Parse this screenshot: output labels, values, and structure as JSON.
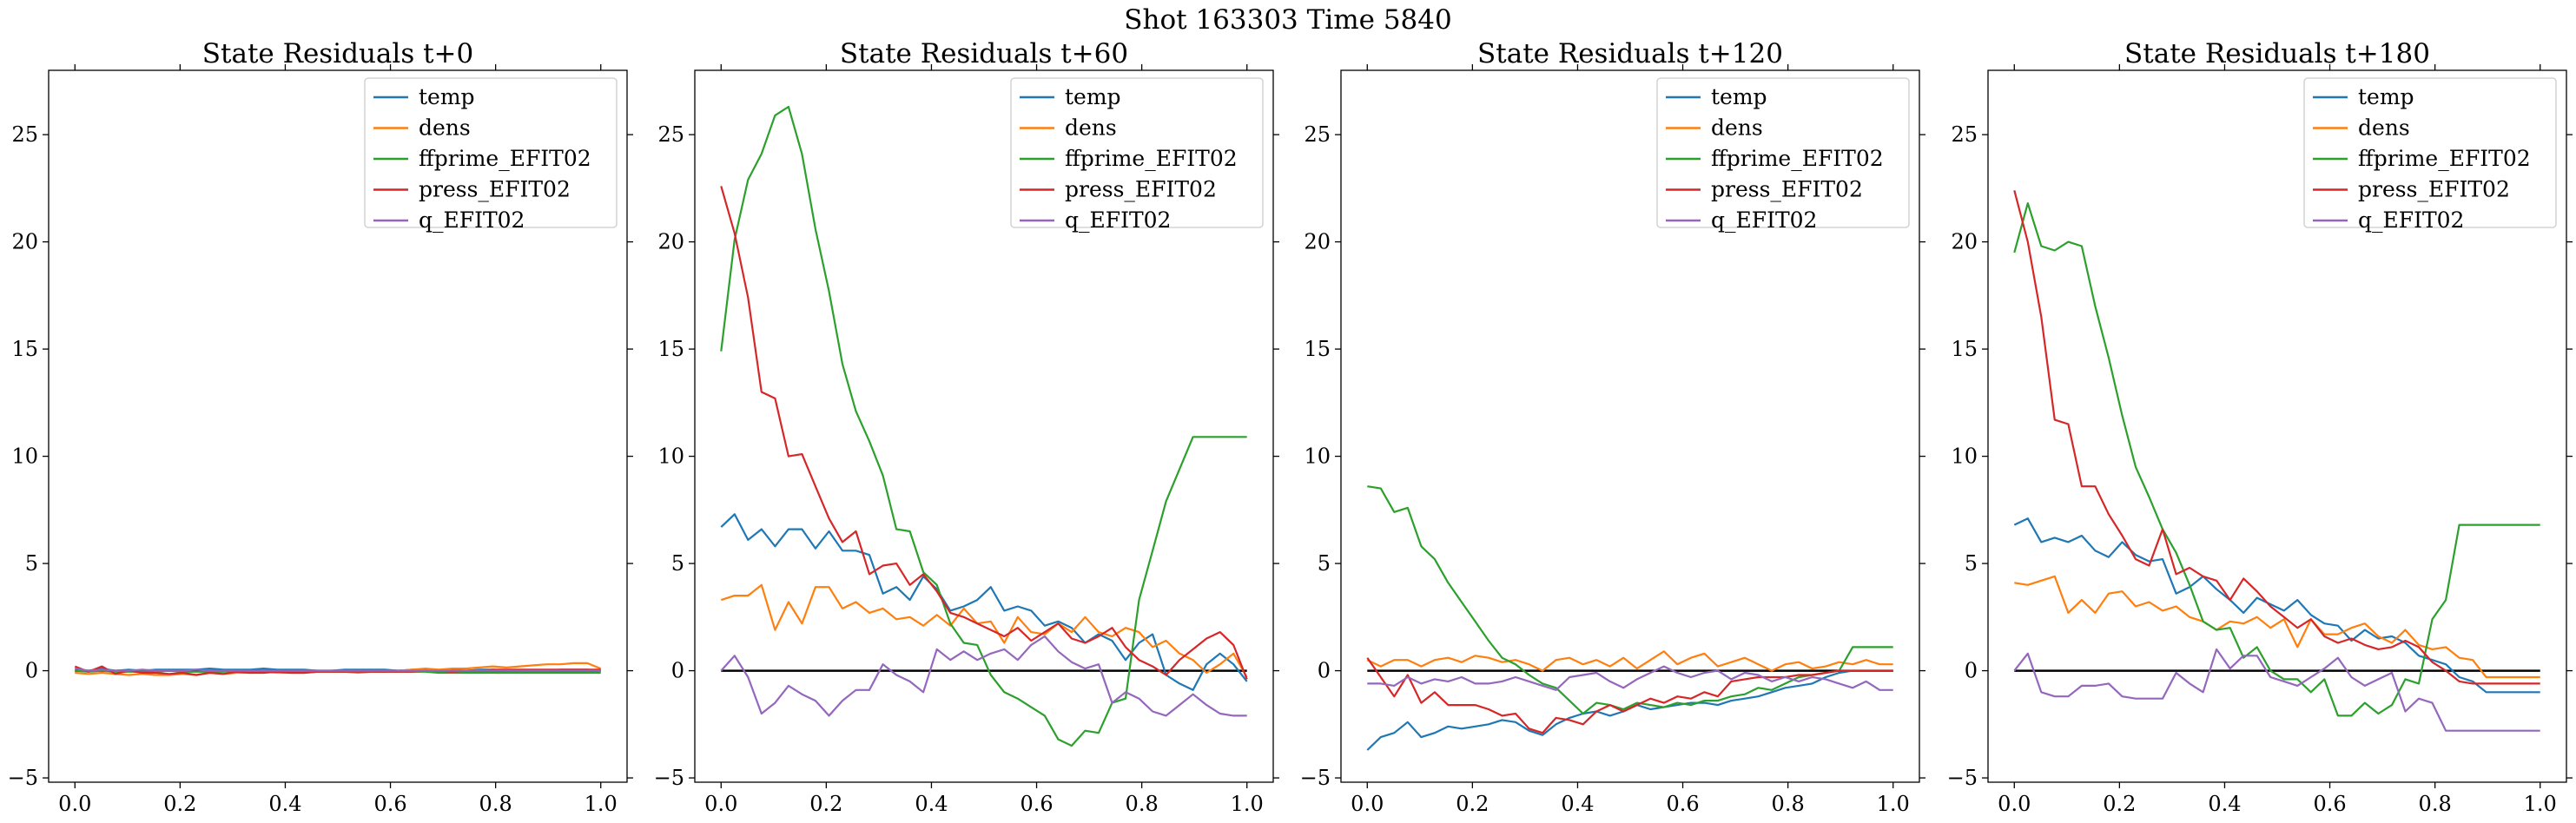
{
  "figure": {
    "suptitle": "Shot 163303   Time 5840",
    "colors": {
      "temp": "#1f77b4",
      "dens": "#ff7f0e",
      "ffprime_EFIT02": "#2ca02c",
      "press_EFIT02": "#d62728",
      "q_EFIT02": "#9467bd"
    }
  },
  "chart_data": [
    {
      "type": "line",
      "title": "State Residuals t+0",
      "xlim": [
        -0.05,
        1.05
      ],
      "ylim": [
        -5.2,
        28
      ],
      "xticks": [
        0.0,
        0.2,
        0.4,
        0.6,
        0.8,
        1.0
      ],
      "xtick_labels": [
        "0.0",
        "0.2",
        "0.4",
        "0.6",
        "0.8",
        "1.0"
      ],
      "yticks": [
        -5,
        0,
        5,
        10,
        15,
        20,
        25
      ],
      "ytick_labels": [
        "−5",
        "0",
        "5",
        "10",
        "15",
        "20",
        "25"
      ],
      "zero_line": true,
      "legend_position": "top-right",
      "series": [
        {
          "name": "temp",
          "color": "#1f77b4",
          "values": [
            0.1,
            0.0,
            0.1,
            0.0,
            0.05,
            0.0,
            0.05,
            0.05,
            0.05,
            0.05,
            0.1,
            0.05,
            0.05,
            0.05,
            0.1,
            0.05,
            0.05,
            0.05,
            0.0,
            0.0,
            0.05,
            0.05,
            0.05,
            0.05,
            0.0,
            0.05,
            0.05,
            0.0,
            0.05,
            0.0,
            0.05,
            0.05,
            0.0,
            0.0,
            0.0,
            0.0,
            0.05,
            0.05,
            0.05,
            0.0
          ]
        },
        {
          "name": "dens",
          "color": "#ff7f0e",
          "values": [
            -0.1,
            -0.15,
            -0.1,
            -0.15,
            -0.2,
            -0.15,
            -0.2,
            -0.2,
            -0.15,
            -0.2,
            -0.1,
            -0.15,
            -0.1,
            -0.1,
            -0.05,
            -0.1,
            -0.1,
            -0.1,
            -0.05,
            -0.05,
            -0.05,
            -0.1,
            -0.05,
            -0.05,
            0.0,
            0.05,
            0.1,
            0.05,
            0.1,
            0.1,
            0.15,
            0.2,
            0.15,
            0.2,
            0.25,
            0.3,
            0.3,
            0.35,
            0.35,
            0.1
          ]
        },
        {
          "name": "ffprime_EFIT02",
          "color": "#2ca02c",
          "values": [
            0.0,
            -0.05,
            0.0,
            -0.05,
            -0.05,
            -0.05,
            -0.05,
            0.0,
            -0.05,
            -0.05,
            -0.05,
            -0.05,
            0.0,
            -0.05,
            -0.05,
            -0.05,
            -0.05,
            -0.05,
            -0.05,
            -0.05,
            -0.05,
            -0.05,
            -0.05,
            -0.05,
            -0.05,
            -0.05,
            -0.05,
            -0.1,
            -0.1,
            -0.1,
            -0.1,
            -0.1,
            -0.1,
            -0.1,
            -0.1,
            -0.1,
            -0.1,
            -0.1,
            -0.1,
            -0.1
          ]
        },
        {
          "name": "press_EFIT02",
          "color": "#d62728",
          "values": [
            0.2,
            -0.05,
            0.2,
            -0.15,
            0.0,
            -0.1,
            -0.1,
            -0.15,
            -0.1,
            -0.2,
            -0.1,
            -0.15,
            -0.05,
            -0.1,
            -0.1,
            -0.05,
            -0.1,
            -0.1,
            -0.05,
            -0.05,
            -0.05,
            -0.05,
            -0.05,
            -0.05,
            -0.05,
            -0.05,
            0.0,
            0.0,
            -0.05,
            0.0,
            0.0,
            0.05,
            0.05,
            0.05,
            0.05,
            0.05,
            0.05,
            0.05,
            0.05,
            0.05
          ]
        },
        {
          "name": "q_EFIT02",
          "color": "#9467bd",
          "values": [
            0.1,
            0.0,
            0.05,
            0.0,
            0.0,
            0.05,
            0.0,
            0.0,
            0.0,
            0.05,
            0.0,
            0.0,
            0.0,
            0.0,
            0.0,
            0.0,
            0.0,
            0.0,
            0.0,
            0.0,
            0.0,
            0.0,
            0.0,
            0.0,
            0.0,
            0.0,
            0.0,
            0.0,
            0.0,
            0.0,
            0.0,
            0.0,
            0.0,
            0.0,
            0.0,
            0.0,
            0.0,
            0.0,
            0.0,
            0.0
          ]
        }
      ]
    },
    {
      "type": "line",
      "title": "State Residuals t+60",
      "xlim": [
        -0.05,
        1.05
      ],
      "ylim": [
        -5.2,
        28
      ],
      "xticks": [
        0.0,
        0.2,
        0.4,
        0.6,
        0.8,
        1.0
      ],
      "xtick_labels": [
        "0.0",
        "0.2",
        "0.4",
        "0.6",
        "0.8",
        "1.0"
      ],
      "yticks": [
        -5,
        0,
        5,
        10,
        15,
        20,
        25
      ],
      "ytick_labels": [
        "−5",
        "0",
        "5",
        "10",
        "15",
        "20",
        "25"
      ],
      "zero_line": true,
      "legend_position": "top-right",
      "series": [
        {
          "name": "temp",
          "color": "#1f77b4",
          "values": [
            6.7,
            7.3,
            6.1,
            6.6,
            5.8,
            6.6,
            6.6,
            5.7,
            6.5,
            5.6,
            5.6,
            5.4,
            3.6,
            3.9,
            3.3,
            4.4,
            3.8,
            2.8,
            3.0,
            3.3,
            3.9,
            2.8,
            3.0,
            2.8,
            2.1,
            2.3,
            2.0,
            1.3,
            1.7,
            1.4,
            0.5,
            1.3,
            1.7,
            -0.2,
            -0.6,
            -0.9,
            0.3,
            0.8,
            0.3,
            -0.5
          ]
        },
        {
          "name": "dens",
          "color": "#ff7f0e",
          "values": [
            3.3,
            3.5,
            3.5,
            4.0,
            1.9,
            3.2,
            2.2,
            3.9,
            3.9,
            2.9,
            3.2,
            2.7,
            2.9,
            2.4,
            2.5,
            2.1,
            2.6,
            2.1,
            2.9,
            2.2,
            2.3,
            1.3,
            2.5,
            1.8,
            1.7,
            2.2,
            1.8,
            2.5,
            1.8,
            1.6,
            2.0,
            1.8,
            1.1,
            1.4,
            0.8,
            0.5,
            -0.1,
            0.3,
            0.8,
            -0.3
          ]
        },
        {
          "name": "ffprime_EFIT02",
          "color": "#2ca02c",
          "values": [
            14.9,
            20.1,
            22.9,
            24.1,
            25.9,
            26.3,
            24.1,
            20.6,
            17.7,
            14.3,
            12.1,
            10.7,
            9.1,
            6.6,
            6.5,
            4.6,
            4.0,
            2.2,
            1.3,
            1.2,
            -0.2,
            -1.0,
            -1.3,
            -1.7,
            -2.1,
            -3.2,
            -3.5,
            -2.8,
            -2.9,
            -1.5,
            -1.3,
            3.3,
            5.6,
            7.9,
            9.4,
            10.9,
            10.9,
            10.9,
            10.9,
            10.9
          ]
        },
        {
          "name": "press_EFIT02",
          "color": "#d62728",
          "values": [
            22.6,
            20.4,
            17.4,
            13.0,
            12.7,
            10.0,
            10.1,
            8.6,
            7.1,
            6.0,
            6.5,
            4.5,
            4.9,
            5.0,
            4.0,
            4.5,
            3.7,
            2.7,
            2.5,
            2.2,
            1.9,
            1.6,
            2.0,
            1.4,
            1.8,
            2.2,
            1.5,
            1.3,
            1.6,
            2.0,
            1.1,
            0.5,
            0.2,
            -0.2,
            0.5,
            1.0,
            1.5,
            1.8,
            1.2,
            -0.4
          ]
        },
        {
          "name": "q_EFIT02",
          "color": "#9467bd",
          "values": [
            0.0,
            0.7,
            -0.3,
            -2.0,
            -1.5,
            -0.7,
            -1.1,
            -1.4,
            -2.1,
            -1.4,
            -0.9,
            -0.9,
            0.3,
            -0.2,
            -0.5,
            -1.0,
            1.0,
            0.5,
            0.9,
            0.5,
            0.8,
            1.0,
            0.5,
            1.2,
            1.6,
            0.9,
            0.4,
            0.1,
            0.3,
            -1.5,
            -1.0,
            -1.3,
            -1.9,
            -2.1,
            -1.6,
            -1.1,
            -1.6,
            -2.0,
            -2.1,
            -2.1
          ]
        }
      ]
    },
    {
      "type": "line",
      "title": "State Residuals t+120",
      "xlim": [
        -0.05,
        1.05
      ],
      "ylim": [
        -5.2,
        28
      ],
      "xticks": [
        0.0,
        0.2,
        0.4,
        0.6,
        0.8,
        1.0
      ],
      "xtick_labels": [
        "0.0",
        "0.2",
        "0.4",
        "0.6",
        "0.8",
        "1.0"
      ],
      "yticks": [
        -5,
        0,
        5,
        10,
        15,
        20,
        25
      ],
      "ytick_labels": [
        "−5",
        "0",
        "5",
        "10",
        "15",
        "20",
        "25"
      ],
      "zero_line": true,
      "legend_position": "top-right",
      "series": [
        {
          "name": "temp",
          "color": "#1f77b4",
          "values": [
            -3.7,
            -3.1,
            -2.9,
            -2.4,
            -3.1,
            -2.9,
            -2.6,
            -2.7,
            -2.6,
            -2.5,
            -2.3,
            -2.4,
            -2.8,
            -3.0,
            -2.5,
            -2.2,
            -2.0,
            -1.9,
            -2.1,
            -1.9,
            -1.6,
            -1.8,
            -1.7,
            -1.6,
            -1.5,
            -1.5,
            -1.6,
            -1.4,
            -1.3,
            -1.2,
            -1.0,
            -0.8,
            -0.7,
            -0.6,
            -0.3,
            -0.1,
            0.0,
            0.0,
            0.0,
            0.0
          ]
        },
        {
          "name": "dens",
          "color": "#ff7f0e",
          "values": [
            0.5,
            0.2,
            0.5,
            0.5,
            0.2,
            0.5,
            0.6,
            0.4,
            0.7,
            0.6,
            0.4,
            0.5,
            0.3,
            0.0,
            0.5,
            0.6,
            0.3,
            0.5,
            0.2,
            0.6,
            0.1,
            0.5,
            0.9,
            0.3,
            0.6,
            0.8,
            0.2,
            0.4,
            0.6,
            0.3,
            0.0,
            0.3,
            0.4,
            0.1,
            0.2,
            0.4,
            0.3,
            0.5,
            0.3,
            0.3
          ]
        },
        {
          "name": "ffprime_EFIT02",
          "color": "#2ca02c",
          "values": [
            8.6,
            8.5,
            7.4,
            7.6,
            5.8,
            5.2,
            4.1,
            3.2,
            2.3,
            1.4,
            0.6,
            0.3,
            -0.2,
            -0.6,
            -0.8,
            -1.4,
            -2.0,
            -1.5,
            -1.6,
            -1.8,
            -1.5,
            -1.6,
            -1.7,
            -1.5,
            -1.6,
            -1.4,
            -1.4,
            -1.2,
            -1.1,
            -0.8,
            -0.9,
            -0.6,
            -0.3,
            -0.2,
            -0.1,
            0.0,
            1.1,
            1.1,
            1.1,
            1.1
          ]
        },
        {
          "name": "press_EFIT02",
          "color": "#d62728",
          "values": [
            0.6,
            -0.3,
            -1.2,
            -0.2,
            -1.5,
            -1.0,
            -1.6,
            -1.6,
            -1.6,
            -1.8,
            -2.1,
            -2.0,
            -2.7,
            -2.9,
            -2.2,
            -2.3,
            -2.5,
            -1.9,
            -1.6,
            -1.9,
            -1.6,
            -1.3,
            -1.5,
            -1.2,
            -1.3,
            -1.0,
            -1.2,
            -0.5,
            -0.4,
            -0.3,
            -0.3,
            -0.3,
            -0.2,
            -0.2,
            -0.1,
            0.0,
            0.0,
            0.0,
            0.0,
            0.0
          ]
        },
        {
          "name": "q_EFIT02",
          "color": "#9467bd",
          "values": [
            -0.6,
            -0.6,
            -0.7,
            -0.3,
            -0.6,
            -0.4,
            -0.5,
            -0.3,
            -0.6,
            -0.6,
            -0.5,
            -0.3,
            -0.5,
            -0.7,
            -0.9,
            -0.3,
            -0.2,
            -0.1,
            -0.5,
            -0.8,
            -0.4,
            -0.1,
            0.2,
            -0.1,
            -0.3,
            -0.1,
            0.0,
            -0.4,
            -0.1,
            -0.2,
            -0.5,
            -0.3,
            -0.5,
            -0.3,
            -0.4,
            -0.6,
            -0.8,
            -0.5,
            -0.9,
            -0.9
          ]
        }
      ]
    },
    {
      "type": "line",
      "title": "State Residuals t+180",
      "xlim": [
        -0.05,
        1.05
      ],
      "ylim": [
        -5.2,
        28
      ],
      "xticks": [
        0.0,
        0.2,
        0.4,
        0.6,
        0.8,
        1.0
      ],
      "xtick_labels": [
        "0.0",
        "0.2",
        "0.4",
        "0.6",
        "0.8",
        "1.0"
      ],
      "yticks": [
        -5,
        0,
        5,
        10,
        15,
        20,
        25
      ],
      "ytick_labels": [
        "−5",
        "0",
        "5",
        "10",
        "15",
        "20",
        "25"
      ],
      "zero_line": true,
      "legend_position": "top-right",
      "series": [
        {
          "name": "temp",
          "color": "#1f77b4",
          "values": [
            6.8,
            7.1,
            6.0,
            6.2,
            6.0,
            6.3,
            5.6,
            5.3,
            6.0,
            5.4,
            5.1,
            5.2,
            3.6,
            3.9,
            4.4,
            3.8,
            3.3,
            2.7,
            3.4,
            3.1,
            2.8,
            3.3,
            2.6,
            2.2,
            2.1,
            1.4,
            1.9,
            1.5,
            1.6,
            1.3,
            0.7,
            0.5,
            0.3,
            -0.3,
            -0.5,
            -1.0,
            -1.0,
            -1.0,
            -1.0,
            -1.0
          ]
        },
        {
          "name": "dens",
          "color": "#ff7f0e",
          "values": [
            4.1,
            4.0,
            4.2,
            4.4,
            2.7,
            3.3,
            2.7,
            3.6,
            3.7,
            3.0,
            3.2,
            2.8,
            3.0,
            2.5,
            2.3,
            1.9,
            2.3,
            2.2,
            2.5,
            2.0,
            2.4,
            1.1,
            2.4,
            1.7,
            1.7,
            2.0,
            2.2,
            1.6,
            1.3,
            1.9,
            1.2,
            1.0,
            1.1,
            0.6,
            0.5,
            -0.3,
            -0.3,
            -0.3,
            -0.3,
            -0.3
          ]
        },
        {
          "name": "ffprime_EFIT02",
          "color": "#2ca02c",
          "values": [
            19.5,
            21.8,
            19.8,
            19.6,
            20.0,
            19.8,
            17.0,
            14.6,
            11.9,
            9.5,
            8.1,
            6.6,
            5.5,
            4.0,
            2.3,
            1.9,
            2.0,
            0.6,
            1.1,
            0.0,
            -0.4,
            -0.4,
            -1.0,
            -0.4,
            -2.1,
            -2.1,
            -1.5,
            -2.0,
            -1.6,
            -0.4,
            -0.6,
            2.4,
            3.3,
            6.8,
            6.8,
            6.8,
            6.8,
            6.8,
            6.8,
            6.8
          ]
        },
        {
          "name": "press_EFIT02",
          "color": "#d62728",
          "values": [
            22.4,
            20.0,
            16.5,
            11.7,
            11.5,
            8.6,
            8.6,
            7.3,
            6.3,
            5.2,
            4.9,
            6.6,
            4.5,
            4.8,
            4.4,
            4.2,
            3.3,
            4.3,
            3.7,
            3.0,
            2.5,
            2.0,
            2.4,
            1.6,
            1.3,
            1.5,
            1.2,
            1.0,
            1.1,
            1.4,
            1.1,
            0.4,
            0.0,
            -0.5,
            -0.6,
            -0.6,
            -0.6,
            -0.6,
            -0.6,
            -0.6
          ]
        },
        {
          "name": "q_EFIT02",
          "color": "#9467bd",
          "values": [
            0.0,
            0.8,
            -1.0,
            -1.2,
            -1.2,
            -0.7,
            -0.7,
            -0.6,
            -1.2,
            -1.3,
            -1.3,
            -1.3,
            -0.1,
            -0.6,
            -1.0,
            1.0,
            0.1,
            0.7,
            0.7,
            -0.3,
            -0.5,
            -0.7,
            -0.3,
            0.1,
            0.6,
            -0.3,
            -0.7,
            -0.4,
            -0.1,
            -1.9,
            -1.3,
            -1.5,
            -2.8,
            -2.8,
            -2.8,
            -2.8,
            -2.8,
            -2.8,
            -2.8,
            -2.8
          ]
        }
      ]
    }
  ]
}
